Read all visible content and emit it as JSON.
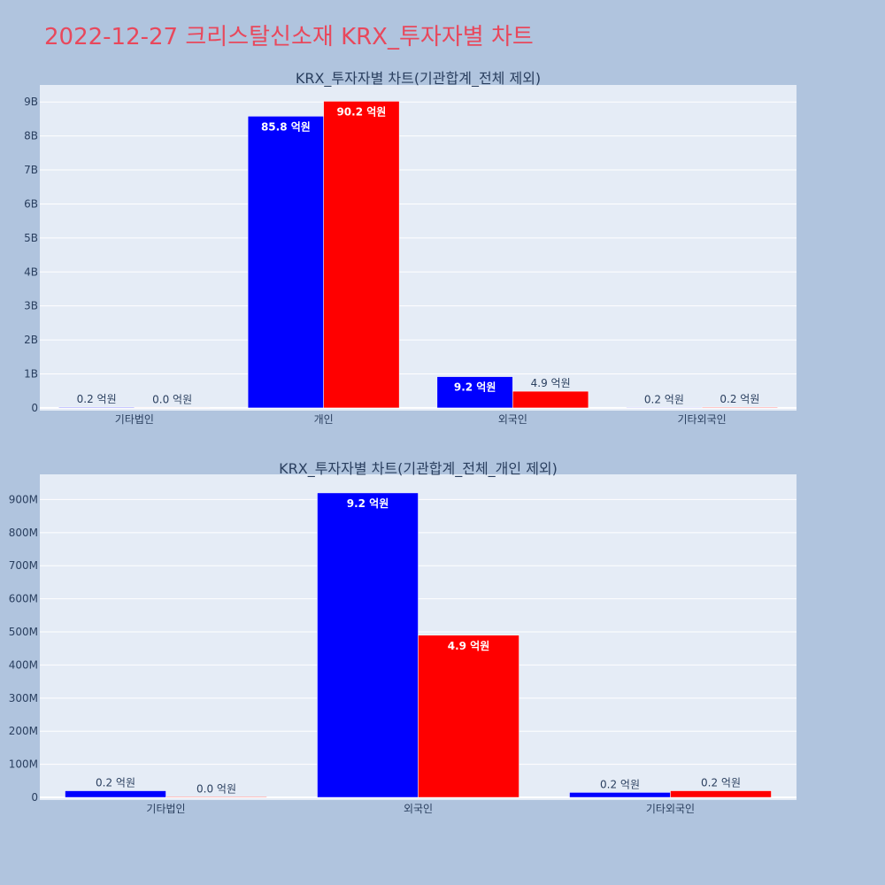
{
  "title": "2022-12-27 크리스탈신소재 KRX_투자자별 차트",
  "colors": {
    "page_bg": "#b0c4de",
    "plot_bg": "#e5ecf6",
    "series_a": "#0000ff",
    "series_b": "#ff0000",
    "grid": "#ffffff"
  },
  "chart_data": [
    {
      "type": "bar",
      "title": "KRX_투자자별 차트(기관합계_전체 제외)",
      "categories": [
        "기타법인",
        "개인",
        "외국인",
        "기타외국인"
      ],
      "series": [
        {
          "color": "#0000ff",
          "values": [
            20000000,
            8580000000,
            920000000,
            15000000
          ],
          "labels": [
            "0.2 억원",
            "85.8 억원",
            "9.2 억원",
            "0.2 억원"
          ]
        },
        {
          "color": "#ff0000",
          "values": [
            2000000,
            9020000000,
            490000000,
            20000000
          ],
          "labels": [
            "0.0 억원",
            "90.2 억원",
            "4.9 억원",
            "0.2 억원"
          ]
        }
      ],
      "ylim": [
        -80000000,
        9500000000
      ],
      "yticks": [
        0,
        1000000000,
        2000000000,
        3000000000,
        4000000000,
        5000000000,
        6000000000,
        7000000000,
        8000000000,
        9000000000
      ],
      "ytick_labels": [
        "0",
        "1B",
        "2B",
        "3B",
        "4B",
        "5B",
        "6B",
        "7B",
        "8B",
        "9B"
      ],
      "grid": true,
      "legend": "none"
    },
    {
      "type": "bar",
      "title": "KRX_투자자별 차트(기관합계_전체_개인 제외)",
      "categories": [
        "기타법인",
        "외국인",
        "기타외국인"
      ],
      "series": [
        {
          "color": "#0000ff",
          "values": [
            20000000,
            920000000,
            15000000
          ],
          "labels": [
            "0.2 억원",
            "9.2 억원",
            "0.2 억원"
          ]
        },
        {
          "color": "#ff0000",
          "values": [
            2000000,
            490000000,
            20000000
          ],
          "labels": [
            "0.0 억원",
            "4.9 억원",
            "0.2 억원"
          ]
        }
      ],
      "ylim": [
        -8000000,
        976000000
      ],
      "yticks": [
        0,
        100000000,
        200000000,
        300000000,
        400000000,
        500000000,
        600000000,
        700000000,
        800000000,
        900000000
      ],
      "ytick_labels": [
        "0",
        "100M",
        "200M",
        "300M",
        "400M",
        "500M",
        "600M",
        "700M",
        "800M",
        "900M"
      ],
      "grid": true,
      "legend": "none"
    }
  ]
}
